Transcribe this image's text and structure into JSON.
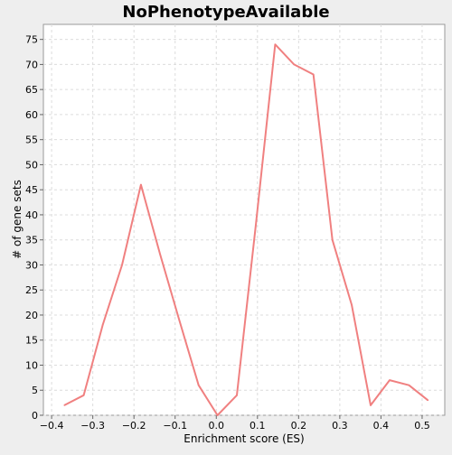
{
  "chart_data": {
    "type": "line",
    "title": "NoPhenotypeAvailable",
    "xlabel": "Enrichment score (ES)",
    "ylabel": "# of gene sets",
    "xlim": [
      -0.42,
      0.555
    ],
    "ylim": [
      0,
      78
    ],
    "x_ticks": [
      -0.4,
      -0.3,
      -0.2,
      -0.1,
      0.0,
      0.1,
      0.2,
      0.3,
      0.4,
      0.5
    ],
    "x_tick_labels": [
      "−0.4",
      "−0.3",
      "−0.2",
      "−0.1",
      "0.0",
      "0.1",
      "0.2",
      "0.3",
      "0.4",
      "0.5"
    ],
    "y_ticks": [
      0,
      5,
      10,
      15,
      20,
      25,
      30,
      35,
      40,
      45,
      50,
      55,
      60,
      65,
      70,
      75
    ],
    "grid": true,
    "line_color": "#f08080",
    "series": [
      {
        "x": [
          -0.369,
          -0.322,
          -0.276,
          -0.229,
          -0.183,
          -0.136,
          -0.09,
          -0.043,
          0.003,
          0.05,
          0.096,
          0.143,
          0.189,
          0.236,
          0.282,
          0.329,
          0.375,
          0.421,
          0.468,
          0.514
        ],
        "values": [
          2,
          4,
          18,
          30,
          46,
          32,
          19,
          6,
          0,
          4,
          38,
          74,
          70,
          68,
          35,
          22,
          2,
          7,
          6,
          3
        ]
      }
    ]
  }
}
